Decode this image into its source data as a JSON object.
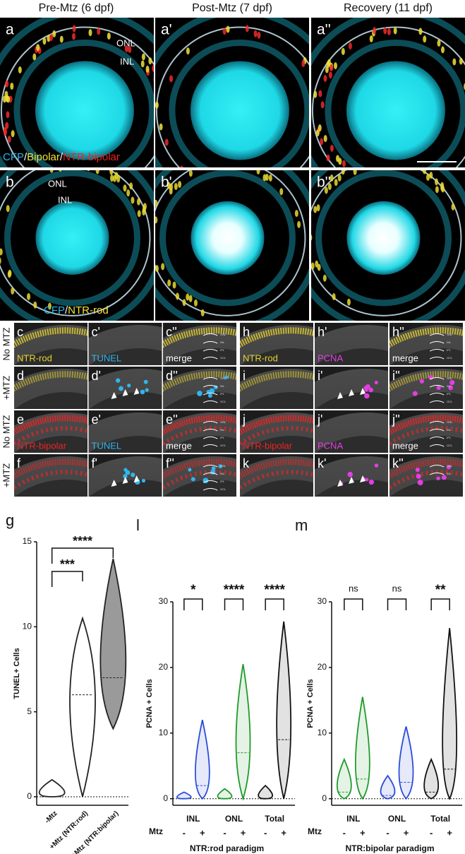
{
  "columns": [
    "Pre-Mtz (6 dpf)",
    "Post-Mtz (7 dpf)",
    "Recovery (11 dpf)"
  ],
  "rows": [
    {
      "panels": [
        {
          "label": "a",
          "annotations": [
            "ONL",
            "INL"
          ],
          "legend": [
            {
              "text": "CFP",
              "color": "#2bb8ee"
            },
            {
              "text": "/",
              "color": "#ffffff"
            },
            {
              "text": "Bipolar",
              "color": "#f2e23a"
            },
            {
              "text": "/",
              "color": "#ffffff"
            },
            {
              "text": "NTR-bipolar",
              "color": "#ee2222"
            }
          ]
        },
        {
          "label": "a'"
        },
        {
          "label": "a''"
        }
      ]
    },
    {
      "panels": [
        {
          "label": "b",
          "annotations": [
            "ONL",
            "INL"
          ],
          "legend": [
            {
              "text": "CFP",
              "color": "#2bb8ee"
            },
            {
              "text": "/",
              "color": "#ffffff"
            },
            {
              "text": "NTR-rod",
              "color": "#f2e23a"
            }
          ]
        },
        {
          "label": "b'"
        },
        {
          "label": "b''"
        }
      ]
    }
  ],
  "grid": {
    "row_labels": [
      "No MTZ",
      "+MTZ",
      "No MTZ",
      "+MTZ"
    ],
    "panels": [
      [
        {
          "label": "c",
          "stain": {
            "text": "NTR-rod",
            "color": "#e6d230"
          }
        },
        {
          "label": "c'",
          "stain": {
            "text": "TUNEL",
            "color": "#2fb6ee"
          }
        },
        {
          "label": "c''",
          "stain": {
            "text": "merge",
            "color": "#ffffff"
          },
          "layers": [
            "ONL",
            "INL",
            "IPL",
            "GCL"
          ]
        },
        {
          "label": "h",
          "stain": {
            "text": "NTR-rod",
            "color": "#e6d230"
          }
        },
        {
          "label": "h'",
          "stain": {
            "text": "PCNA",
            "color": "#e23ee2"
          }
        },
        {
          "label": "h''",
          "stain": {
            "text": "merge",
            "color": "#ffffff"
          },
          "layers": [
            "ONL",
            "INL",
            "IPL",
            "GCL"
          ]
        }
      ],
      [
        {
          "label": "d"
        },
        {
          "label": "d'"
        },
        {
          "label": "d''",
          "layers": [
            "ONL",
            "INL",
            "IPL",
            "GCL"
          ]
        },
        {
          "label": "i"
        },
        {
          "label": "i'"
        },
        {
          "label": "i''",
          "layers": [
            "ONL",
            "INL",
            "IPL",
            "GCL"
          ]
        }
      ],
      [
        {
          "label": "e",
          "stain": {
            "text": "NTR-bipolar",
            "color": "#ee2424"
          }
        },
        {
          "label": "e'",
          "stain": {
            "text": "TUNEL",
            "color": "#2fb6ee"
          }
        },
        {
          "label": "e''",
          "stain": {
            "text": "merge",
            "color": "#ffffff"
          },
          "layers": [
            "ONL",
            "INL",
            "IPL",
            "GCL"
          ]
        },
        {
          "label": "j",
          "stain": {
            "text": "NTR-bipolar",
            "color": "#ee2424"
          }
        },
        {
          "label": "j'",
          "stain": {
            "text": "PCNA",
            "color": "#e23ee2"
          }
        },
        {
          "label": "j''",
          "stain": {
            "text": "merge",
            "color": "#ffffff"
          },
          "layers": [
            "ONL",
            "INL",
            "IPL",
            "GCL"
          ]
        }
      ],
      [
        {
          "label": "f"
        },
        {
          "label": "f'"
        },
        {
          "label": "f''",
          "layers": [
            "ONL",
            "INL",
            "IPL",
            "GCL"
          ]
        },
        {
          "label": "k"
        },
        {
          "label": "k'"
        },
        {
          "label": "k''",
          "layers": [
            "ONL",
            "INL"
          ]
        }
      ]
    ]
  },
  "chart_data": [
    {
      "type": "violin",
      "label": "g",
      "ylabel": "TUNEL+ Cells",
      "categories": [
        "-Mtz",
        "+Mtz (NTR:rod)",
        "+Mtz (NTR:bipolar)"
      ],
      "min": [
        0,
        0,
        4
      ],
      "median": [
        0,
        6,
        7
      ],
      "max": [
        1,
        10.5,
        14
      ],
      "color": "#222222",
      "fills": [
        "#ffffff",
        "#ffffff",
        "#9a9a9a"
      ],
      "ylim": [
        -0.5,
        15
      ],
      "yticks": [
        0,
        5,
        10,
        15
      ],
      "hline": 0,
      "significance": [
        {
          "label": "***",
          "between": [
            0,
            1
          ]
        },
        {
          "label": "****",
          "between": [
            0,
            2
          ]
        }
      ]
    },
    {
      "type": "grouped_violin",
      "label": "l",
      "ylabel": "PCNA + Cells",
      "xlabel": "NTR:rod paradigm",
      "sub_title": "Mtz",
      "sub_categories": [
        "-",
        "+"
      ],
      "groups": [
        {
          "name": "INL",
          "color": "#2a4bd7",
          "significance": "*",
          "min": [
            0,
            0
          ],
          "median": [
            0,
            2
          ],
          "max": [
            1,
            12
          ]
        },
        {
          "name": "ONL",
          "color": "#1f9a2a",
          "significance": "****",
          "min": [
            0,
            0
          ],
          "median": [
            0,
            7
          ],
          "max": [
            1.5,
            20.5
          ]
        },
        {
          "name": "Total",
          "color": "#111111",
          "significance": "****",
          "min": [
            0,
            0
          ],
          "median": [
            0,
            9
          ],
          "max": [
            2,
            27
          ]
        }
      ],
      "ylim": [
        -1,
        30
      ],
      "yticks": [
        0,
        10,
        20,
        30
      ],
      "hline": 0
    },
    {
      "type": "grouped_violin",
      "label": "m",
      "ylabel": "PCNA + Cells",
      "xlabel": "NTR:bipolar paradigm",
      "sub_title": "Mtz",
      "sub_categories": [
        "-",
        "+"
      ],
      "groups": [
        {
          "name": "INL",
          "color": "#1f9a2a",
          "significance": "ns",
          "min": [
            0,
            0
          ],
          "median": [
            1,
            3
          ],
          "max": [
            6,
            15.5
          ]
        },
        {
          "name": "ONL",
          "color": "#2a4bd7",
          "significance": "ns",
          "min": [
            0,
            0
          ],
          "median": [
            0.5,
            2.5
          ],
          "max": [
            3.5,
            11
          ]
        },
        {
          "name": "Total",
          "color": "#111111",
          "significance": "**",
          "min": [
            0,
            0
          ],
          "median": [
            1,
            4.5
          ],
          "max": [
            6,
            26
          ]
        }
      ],
      "ylim": [
        -1,
        30
      ],
      "yticks": [
        0,
        10,
        20,
        30
      ],
      "hline": 0
    }
  ]
}
